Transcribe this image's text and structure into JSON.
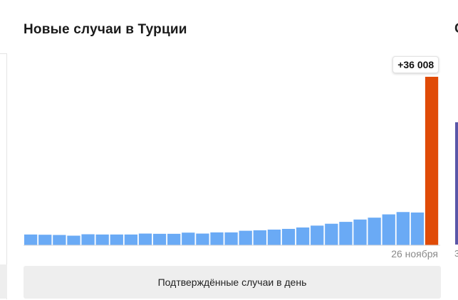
{
  "chart_data": {
    "type": "bar",
    "title": "Новые случаи в Турции",
    "xlabel": "",
    "ylabel": "",
    "last_label": "+36 008",
    "x_tick": "26 ноября",
    "ylim": [
      0,
      36008
    ],
    "values": [
      2300,
      2250,
      2200,
      2050,
      2350,
      2300,
      2300,
      2300,
      2500,
      2450,
      2450,
      2700,
      2500,
      2750,
      2750,
      3100,
      3200,
      3350,
      3500,
      3800,
      4200,
      4600,
      5000,
      5500,
      5900,
      6600,
      7100,
      7000,
      36008
    ],
    "colors": {
      "normal": "#6aaaf5",
      "highlight": "#e04b07"
    }
  },
  "footer": {
    "label": "Подтверждённые случаи в день"
  },
  "neighbor": {
    "title_fragment": "С",
    "label_fragment": "3"
  }
}
